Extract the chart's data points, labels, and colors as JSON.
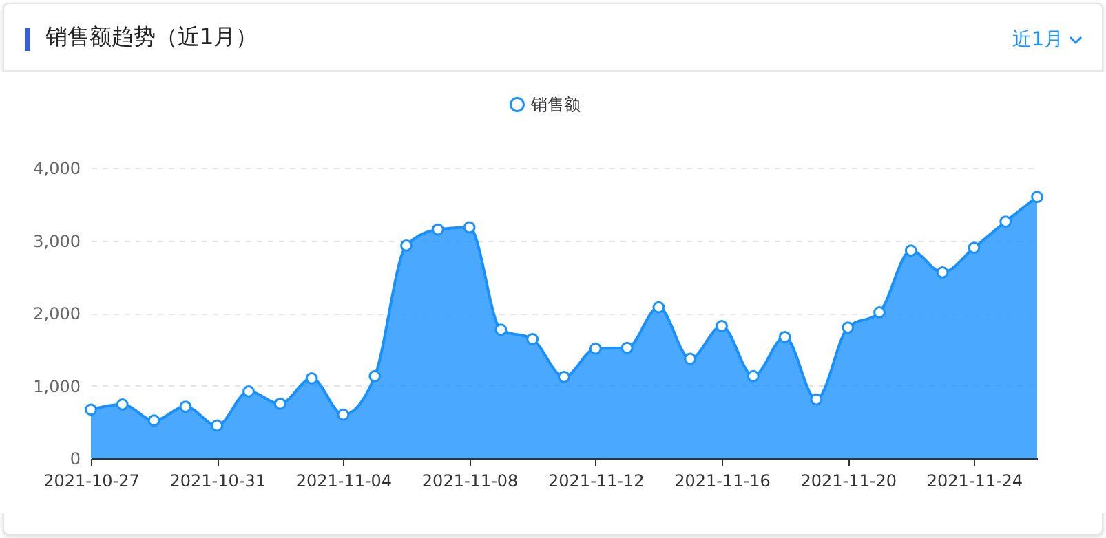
{
  "chart_data": {
    "type": "area",
    "title": "销售额趋势（近1月）",
    "annotations": [
      "近1月"
    ],
    "x": [
      "2021-10-27",
      "2021-10-28",
      "2021-10-29",
      "2021-10-30",
      "2021-10-31",
      "2021-11-01",
      "2021-11-02",
      "2021-11-03",
      "2021-11-04",
      "2021-11-05",
      "2021-11-06",
      "2021-11-07",
      "2021-11-08",
      "2021-11-09",
      "2021-11-10",
      "2021-11-11",
      "2021-11-12",
      "2021-11-13",
      "2021-11-14",
      "2021-11-15",
      "2021-11-16",
      "2021-11-17",
      "2021-11-18",
      "2021-11-19",
      "2021-11-20",
      "2021-11-21",
      "2021-11-22",
      "2021-11-23",
      "2021-11-24",
      "2021-11-25",
      "2021-11-26"
    ],
    "series": [
      {
        "name": "销售额",
        "color": "#1890ff",
        "values": [
          670,
          740,
          520,
          710,
          450,
          920,
          750,
          1100,
          600,
          1130,
          2930,
          3150,
          3180,
          1770,
          1640,
          1120,
          1510,
          1520,
          2080,
          1370,
          1820,
          1130,
          1670,
          810,
          1800,
          2010,
          2860,
          2560,
          2900,
          3260,
          3600
        ]
      }
    ],
    "xlim": [
      "2021-10-27",
      "2021-11-26"
    ],
    "xticks": [
      "2021-10-27",
      "2021-10-31",
      "2021-11-04",
      "2021-11-08",
      "2021-11-12",
      "2021-11-16",
      "2021-11-20",
      "2021-11-24"
    ],
    "ylim": [
      0,
      4000
    ],
    "yticks": [
      0,
      {
        "value": 1000,
        "label": "1,000"
      },
      {
        "value": 2000,
        "label": "2,000"
      },
      {
        "value": 3000,
        "label": "3,000"
      },
      {
        "value": 4000,
        "label": "4,000"
      }
    ],
    "grid": "y",
    "legend": "top",
    "marker": "circle"
  }
}
